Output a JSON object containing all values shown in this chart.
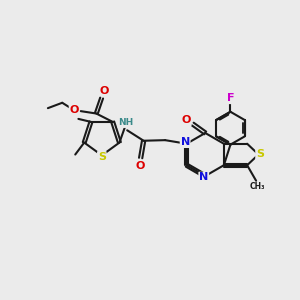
{
  "background_color": "#ebebeb",
  "figure_size": [
    3.0,
    3.0
  ],
  "dpi": 100,
  "atom_colors": {
    "C": "#1a1a1a",
    "N": "#1010dd",
    "O": "#dd0000",
    "S": "#c8c800",
    "F": "#cc00cc",
    "H": "#3a8a8a"
  },
  "bond_color": "#1a1a1a",
  "bond_width": 1.5,
  "font_size_atom": 7.0,
  "font_size_small": 5.5
}
